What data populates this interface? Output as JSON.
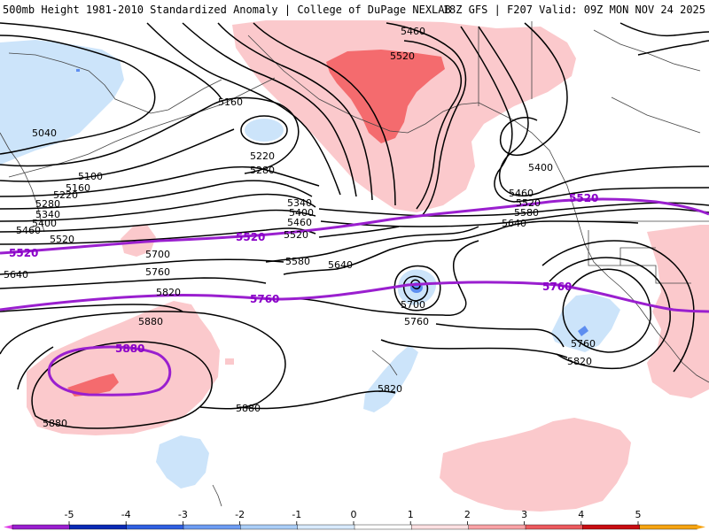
{
  "header": {
    "title": "500mb Height 1981-2010 Standardized Anomaly | College of DuPage NEXLAB",
    "valid": "18Z GFS | F207 Valid: 09Z MON NOV 24 2025"
  },
  "colors": {
    "neg_fill_light": "#cce4fa",
    "neg_fill_mid": "#5e8ef0",
    "pos_fill_light": "#fbc9cc",
    "pos_fill_mid": "#f46b6e",
    "highlight_contour": "#9a1fcf",
    "contour": "#000000",
    "coast": "#444444"
  },
  "height_contour_labels": {
    "c5160_a": "5160",
    "c5040": "5040",
    "c5100": "5100",
    "c5160_b": "5160",
    "c5220_w": "5220",
    "c5280_w": "5280",
    "c5340_w": "5340",
    "c5400_w": "5400",
    "c5460_w": "5460",
    "c5520_w": "5520",
    "c5640_w": "5640",
    "c5220_c": "5220",
    "c5280_c": "5280",
    "c5340_c": "5340",
    "c5400_c": "5400",
    "c5460_c": "5460",
    "c5520_c": "5520",
    "c5580_c": "5580",
    "c5640_c": "5640",
    "c5700_w": "5700",
    "c5760_w": "5760",
    "c5820_w": "5820",
    "c5880_w": "5880",
    "c5880_sw": "5880",
    "c5880_s": "5880",
    "c5460_n": "5460",
    "c5520_n": "5520",
    "c5400_e": "5400",
    "c5460_e": "5460",
    "c5520_e": "5520",
    "c5580_e": "5580",
    "c5640_e": "5640",
    "c5700_l": "5700",
    "c5760_l": "5760",
    "c5820_h": "5820",
    "c5760_b": "5760",
    "c5820_b": "5820"
  },
  "highlight_labels": {
    "h5520_w": "5520",
    "h5520_c": "5520",
    "h5520_e": "5520",
    "h5760_c": "5760",
    "h5760_e": "5760",
    "h5880": "5880"
  },
  "colorbar": {
    "ticks": [
      "-5",
      "-4",
      "-3",
      "-2",
      "-1",
      "0",
      "1",
      "2",
      "3",
      "4",
      "5"
    ],
    "colors": [
      "#9a1fcf",
      "#0a2ab5",
      "#2f5fe0",
      "#6d9cf2",
      "#aacdf7",
      "#d8eafc",
      "#ffffff",
      "#fde0e2",
      "#f9a2a6",
      "#ec5a5e",
      "#c80d12",
      "#f6a412"
    ]
  }
}
